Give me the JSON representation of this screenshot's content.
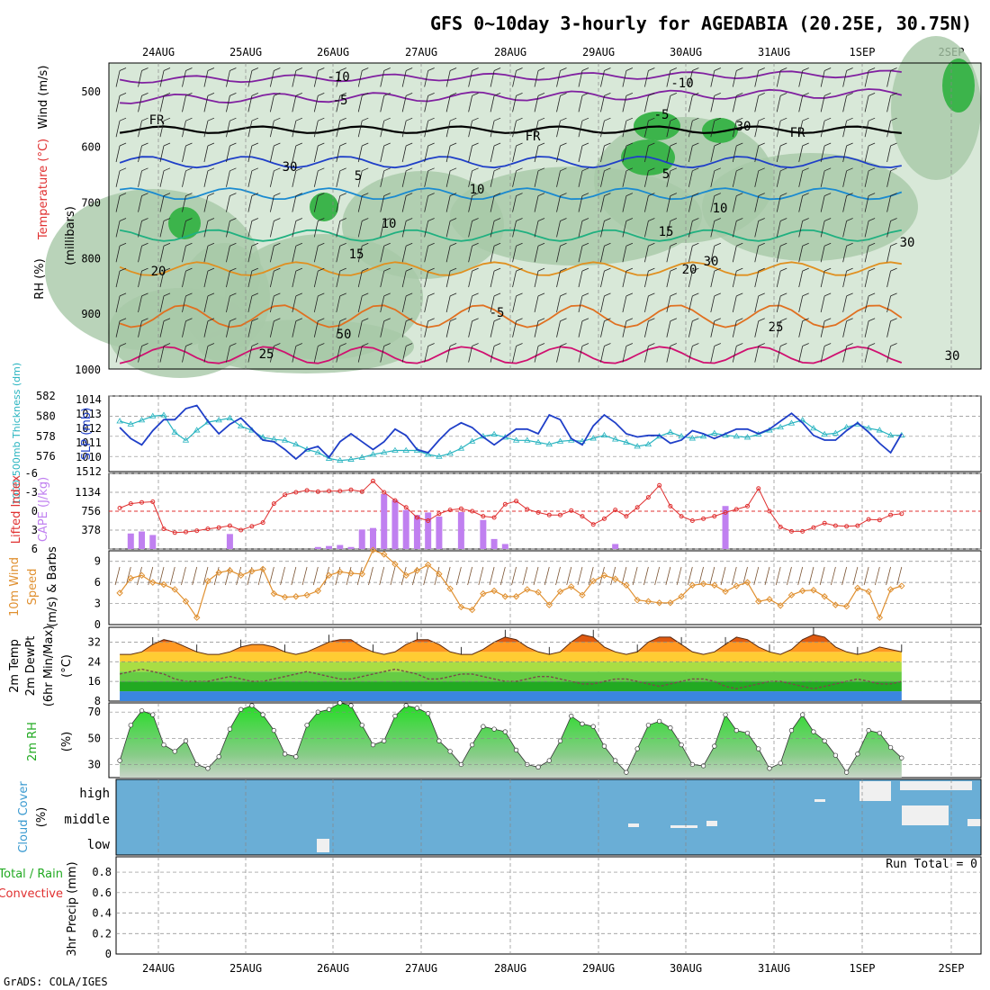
{
  "title": "GFS 0~10day 3-hourly for AGEDABIA (20.25E, 30.75N)",
  "footer": "GrADS: COLA/IGES",
  "dates": [
    "24AUG",
    "25AUG",
    "26AUG",
    "27AUG",
    "28AUG",
    "29AUG",
    "30AUG",
    "31AUG",
    "1SEP",
    "2SEP"
  ],
  "colors": {
    "rh_dark": "#3cb44b",
    "rh_mid": "#a8c8a8",
    "rh_light": "#d8e8d8",
    "slp": "#1f3fc8",
    "thickness": "#28b4c0",
    "lifted": "#e03030",
    "cape": "#c080f0",
    "wind": "#e09030",
    "cloud": "#6aaed6",
    "precip_total": "#22aa22",
    "precip_conv": "#e03030"
  },
  "panels": {
    "upper": {
      "ylabel_main": "(millibars)",
      "ylabel_wind": "Wind (m/s)",
      "ylabel_temp": "Temperature (°C)",
      "ylabel_rh": "RH (%)",
      "y_ticks": [
        "500",
        "600",
        "700",
        "800",
        "900",
        "1000"
      ],
      "contour_labels": [
        "-10",
        "-5",
        "FR",
        "-5",
        "5",
        "10",
        "15",
        "20",
        "25",
        "-10",
        "-5",
        "FR",
        "5",
        "10",
        "15",
        "20",
        "25",
        "FR",
        "30",
        "30",
        "10",
        "30",
        "30",
        "30",
        "50"
      ]
    },
    "slp": {
      "ylabel_a": "1000-500mb Thickness (dm)",
      "ylabel_b": "SLP (mb)",
      "left_ticks": [
        "582",
        "580",
        "578",
        "576"
      ],
      "right_ticks": [
        "1014",
        "1013",
        "1012",
        "1011",
        "1010",
        "1512"
      ]
    },
    "cape": {
      "ylabel_a": "Lifted Index",
      "ylabel_b": "CAPE (J/kg)",
      "left_ticks": [
        "-6",
        "-3",
        "0",
        "3",
        "6"
      ],
      "right_ticks": [
        "1134",
        "756",
        "378"
      ]
    },
    "wind": {
      "ylabel_a": "10m Wind",
      "ylabel_b": "Speed",
      "ylabel_c": "(m/s) & Barbs",
      "ticks": [
        "9",
        "6",
        "3",
        "0"
      ]
    },
    "temp": {
      "ylabel_a": "2m Temp",
      "ylabel_b": "2m DewPt",
      "ylabel_c": "(6hr Min/Max)",
      "ylabel_d": "(°C)",
      "ticks": [
        "32",
        "24",
        "16",
        "8"
      ]
    },
    "rh": {
      "ylabel_a": "2m RH",
      "ylabel_b": "(%)",
      "ticks": [
        "70",
        "50",
        "30"
      ]
    },
    "cloud": {
      "ylabel_a": "Cloud Cover",
      "ylabel_b": "(%)",
      "levels": [
        "high",
        "middle",
        "low"
      ]
    },
    "precip": {
      "ylabel_a": "Total / Rain",
      "ylabel_b": "Convective",
      "ylabel_c": "3hr Precip (mm)",
      "ticks": [
        "0.8",
        "0.6",
        "0.4",
        "0.2",
        "0"
      ],
      "run_total": "Run Total = 0"
    }
  },
  "chart_data": {
    "type": "line",
    "x_dates": [
      "24AUG",
      "25AUG",
      "26AUG",
      "27AUG",
      "28AUG",
      "29AUG",
      "30AUG",
      "31AUG",
      "1SEP",
      "2SEP"
    ],
    "thickness_dm": [
      579.5,
      579.2,
      579.6,
      580.0,
      580.1,
      578.4,
      577.6,
      578.6,
      579.4,
      579.6,
      579.8,
      579.0,
      578.6,
      577.9,
      577.7,
      577.6,
      577.2,
      576.7,
      576.4,
      575.8,
      575.6,
      575.7,
      575.9,
      576.2,
      576.4,
      576.6,
      576.6,
      576.6,
      576.2,
      576.0,
      576.3,
      576.8,
      577.5,
      578.0,
      578.2,
      577.9,
      577.6,
      577.6,
      577.4,
      577.2,
      577.5,
      577.6,
      577.5,
      577.8,
      578.1,
      577.7,
      577.4,
      577.0,
      577.2,
      578.0,
      578.4,
      578.0,
      577.8,
      578.0,
      578.3,
      578.1,
      578.0,
      577.9,
      578.2,
      578.6,
      578.9,
      579.3,
      579.6,
      578.8,
      578.2,
      578.3,
      578.9,
      579.2,
      578.8,
      578.6,
      578.1,
      578.1
    ],
    "slp_mb": [
      1012.0,
      1011.3,
      1010.9,
      1011.8,
      1012.5,
      1012.5,
      1013.2,
      1013.4,
      1012.4,
      1011.6,
      1012.2,
      1012.6,
      1011.9,
      1011.2,
      1011.1,
      1010.6,
      1010.0,
      1010.6,
      1010.8,
      1010.1,
      1011.1,
      1011.6,
      1011.1,
      1010.6,
      1011.1,
      1011.9,
      1011.5,
      1010.6,
      1010.4,
      1011.2,
      1011.9,
      1012.3,
      1012.0,
      1011.4,
      1010.9,
      1011.4,
      1011.9,
      1011.9,
      1011.6,
      1012.8,
      1012.5,
      1011.3,
      1010.9,
      1012.1,
      1012.8,
      1012.3,
      1011.6,
      1011.4,
      1011.5,
      1011.5,
      1011.0,
      1011.2,
      1011.8,
      1011.6,
      1011.3,
      1011.6,
      1011.9,
      1011.9,
      1011.6,
      1011.9,
      1012.4,
      1012.9,
      1012.3,
      1011.5,
      1011.2,
      1011.2,
      1011.8,
      1012.3,
      1011.7,
      1011.0,
      1010.4,
      1011.6
    ],
    "lifted_index": [
      -0.5,
      -1.2,
      -1.4,
      -1.5,
      2.8,
      3.4,
      3.3,
      3.1,
      2.8,
      2.6,
      2.3,
      3.0,
      2.4,
      1.8,
      -1.2,
      -2.6,
      -3.0,
      -3.3,
      -3.1,
      -3.2,
      -3.2,
      -3.4,
      -3.1,
      -4.8,
      -3.0,
      -1.7,
      -0.6,
      1.0,
      1.5,
      0.4,
      -0.2,
      -0.4,
      0.0,
      0.8,
      1.0,
      -1.1,
      -1.6,
      -0.3,
      0.2,
      0.6,
      0.6,
      -0.1,
      0.8,
      2.1,
      1.2,
      -0.2,
      0.8,
      -0.6,
      -2.2,
      -4.1,
      -0.8,
      0.8,
      1.5,
      1.2,
      0.8,
      0.2,
      -0.3,
      -0.8,
      -3.6,
      0.0,
      2.5,
      3.2,
      3.2,
      2.6,
      1.9,
      2.3,
      2.4,
      2.3,
      1.3,
      1.4,
      0.6,
      0.4
    ],
    "cape_jkg": [
      0,
      310,
      350,
      280,
      0,
      0,
      0,
      0,
      0,
      0,
      300,
      0,
      0,
      0,
      0,
      0,
      0,
      0,
      40,
      60,
      80,
      40,
      390,
      420,
      1100,
      980,
      780,
      680,
      730,
      650,
      0,
      740,
      0,
      580,
      200,
      100,
      0,
      0,
      0,
      0,
      0,
      0,
      0,
      0,
      0,
      100,
      0,
      0,
      0,
      0,
      0,
      0,
      0,
      0,
      0,
      860,
      0,
      0,
      0,
      0,
      0,
      0,
      0,
      0,
      0,
      0,
      0,
      0,
      0,
      0,
      0,
      0
    ],
    "wind10m_ms": [
      4.5,
      6.6,
      7.0,
      6.0,
      5.7,
      5.0,
      3.3,
      1.0,
      6.2,
      7.4,
      7.7,
      7.0,
      7.6,
      7.9,
      4.4,
      3.9,
      4.0,
      4.2,
      4.8,
      7.0,
      7.5,
      7.3,
      7.2,
      10.6,
      10.0,
      8.6,
      7.0,
      7.7,
      8.5,
      7.2,
      5.1,
      2.5,
      2.1,
      4.4,
      4.8,
      4.0,
      4.0,
      5.0,
      4.6,
      2.8,
      4.7,
      5.4,
      4.2,
      6.2,
      7.0,
      6.5,
      5.6,
      3.5,
      3.3,
      3.1,
      3.1,
      4.0,
      5.6,
      5.8,
      5.6,
      4.7,
      5.5,
      6.0,
      3.3,
      3.6,
      2.7,
      4.2,
      4.8,
      4.9,
      4.0,
      2.8,
      2.6,
      5.2,
      4.7,
      1.0,
      5.0,
      5.5
    ],
    "temp2m_c": [
      27,
      27,
      28,
      31,
      33,
      32,
      30,
      28,
      27,
      27,
      28,
      30,
      31,
      31,
      30,
      28,
      27,
      28,
      30,
      32,
      33,
      33,
      30,
      28,
      27,
      28,
      31,
      33,
      33,
      31,
      28,
      27,
      27,
      29,
      32,
      34,
      33,
      30,
      28,
      27,
      28,
      32,
      35,
      34,
      30,
      28,
      27,
      28,
      32,
      34,
      34,
      31,
      28,
      27,
      28,
      31,
      34,
      33,
      30,
      28,
      27,
      29,
      33,
      35,
      34,
      30,
      28,
      27,
      28,
      30,
      29,
      28
    ],
    "dewpt2m_c": [
      19,
      20,
      21,
      20,
      19,
      17,
      16,
      16,
      16,
      17,
      18,
      17,
      16,
      16,
      17,
      18,
      19,
      20,
      19,
      18,
      17,
      17,
      18,
      19,
      20,
      21,
      20,
      19,
      17,
      17,
      18,
      19,
      19,
      18,
      17,
      16,
      16,
      17,
      18,
      18,
      17,
      16,
      15,
      15,
      16,
      17,
      17,
      16,
      15,
      14,
      15,
      16,
      17,
      17,
      16,
      14,
      13,
      14,
      15,
      16,
      16,
      15,
      14,
      13,
      14,
      15,
      16,
      17,
      16,
      15,
      15,
      16
    ],
    "rh2m_pct": [
      33,
      60,
      71,
      68,
      45,
      40,
      48,
      30,
      27,
      36,
      57,
      72,
      75,
      68,
      56,
      38,
      36,
      60,
      70,
      72,
      77,
      75,
      60,
      45,
      48,
      67,
      75,
      73,
      69,
      48,
      40,
      30,
      45,
      59,
      57,
      55,
      41,
      30,
      28,
      33,
      48,
      67,
      61,
      59,
      44,
      33,
      24,
      42,
      60,
      63,
      58,
      45,
      30,
      29,
      44,
      68,
      56,
      54,
      42,
      27,
      31,
      56,
      68,
      55,
      48,
      37,
      24,
      38,
      56,
      54,
      43,
      35
    ]
  }
}
